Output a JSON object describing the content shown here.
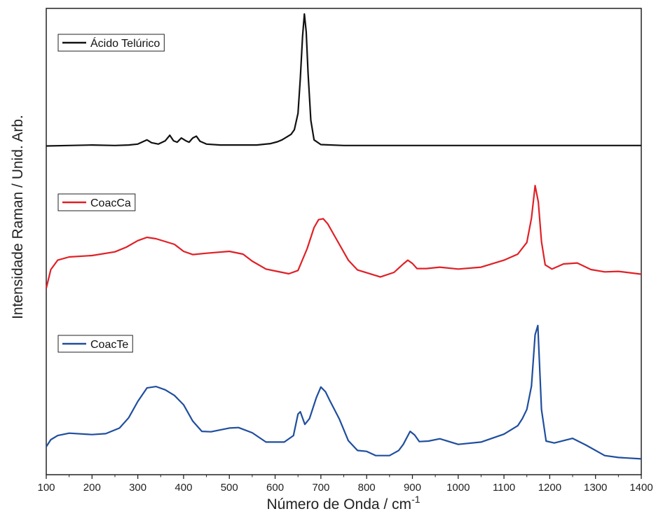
{
  "chart_data": {
    "type": "line",
    "xlabel": "Número de Onda / cm",
    "xlabel_sup": "-1",
    "ylabel": "Intensidade Raman / Unid. Arb.",
    "xlim": [
      100,
      1400
    ],
    "ylim": [
      0,
      100
    ],
    "grid": false,
    "legend_placement": "top-left of each stacked panel",
    "x_ticks": [
      "100",
      "200",
      "300",
      "400",
      "500",
      "600",
      "700",
      "800",
      "900",
      "1000",
      "1100",
      "1200",
      "1300",
      "1400"
    ],
    "y_ticks_shown": false,
    "series": [
      {
        "name": "Ácido Telúrico",
        "color": "#111111",
        "x": [
          100,
          150,
          200,
          250,
          280,
          300,
          320,
          330,
          345,
          360,
          370,
          378,
          386,
          395,
          405,
          412,
          420,
          428,
          436,
          450,
          480,
          520,
          560,
          590,
          605,
          615,
          625,
          635,
          642,
          650,
          655,
          660,
          664,
          668,
          672,
          678,
          685,
          700,
          750,
          800,
          900,
          1000,
          1100,
          1200,
          1300,
          1400
        ],
        "y": [
          70.5,
          70.6,
          70.7,
          70.6,
          70.7,
          70.9,
          71.8,
          71.2,
          70.9,
          71.6,
          72.8,
          71.6,
          71.3,
          72.2,
          71.6,
          71.3,
          72.2,
          72.6,
          71.5,
          70.9,
          70.7,
          70.7,
          70.7,
          71.0,
          71.4,
          71.8,
          72.4,
          73.0,
          74.0,
          77.5,
          85.0,
          94.0,
          98.8,
          95.0,
          86.0,
          76.0,
          71.8,
          70.8,
          70.6,
          70.6,
          70.6,
          70.6,
          70.6,
          70.6,
          70.6,
          70.6
        ]
      },
      {
        "name": "CoacCa",
        "color": "#e02026",
        "x": [
          100,
          110,
          125,
          150,
          200,
          250,
          275,
          300,
          320,
          340,
          360,
          380,
          400,
          420,
          450,
          500,
          530,
          550,
          580,
          600,
          630,
          650,
          670,
          685,
          695,
          705,
          715,
          730,
          760,
          780,
          800,
          830,
          860,
          880,
          890,
          900,
          910,
          930,
          960,
          1000,
          1050,
          1100,
          1130,
          1150,
          1160,
          1168,
          1175,
          1182,
          1190,
          1205,
          1230,
          1260,
          1290,
          1320,
          1350,
          1400
        ],
        "y": [
          40.0,
          44.0,
          46.0,
          46.7,
          47.0,
          47.8,
          48.8,
          50.2,
          50.9,
          50.6,
          50.0,
          49.4,
          47.9,
          47.2,
          47.5,
          47.9,
          47.3,
          45.8,
          44.1,
          43.7,
          43.1,
          43.8,
          48.5,
          53.0,
          54.7,
          54.9,
          53.8,
          51.2,
          46.0,
          43.9,
          43.3,
          42.4,
          43.4,
          45.2,
          46.0,
          45.3,
          44.2,
          44.2,
          44.5,
          44.1,
          44.5,
          46.0,
          47.3,
          49.8,
          55.0,
          62.0,
          58.5,
          50.0,
          45.0,
          44.1,
          45.2,
          45.4,
          44.0,
          43.5,
          43.6,
          43.0
        ]
      },
      {
        "name": "CoacTe",
        "color": "#1f4e9e",
        "x": [
          100,
          110,
          125,
          150,
          200,
          230,
          260,
          280,
          300,
          320,
          340,
          360,
          380,
          400,
          420,
          440,
          460,
          500,
          520,
          550,
          580,
          620,
          640,
          650,
          655,
          665,
          675,
          690,
          700,
          710,
          720,
          740,
          760,
          780,
          800,
          820,
          850,
          870,
          880,
          895,
          905,
          915,
          935,
          960,
          1000,
          1050,
          1100,
          1130,
          1140,
          1150,
          1160,
          1168,
          1174,
          1182,
          1192,
          1210,
          1250,
          1280,
          1320,
          1350,
          1400
        ],
        "y": [
          6.0,
          7.5,
          8.4,
          8.9,
          8.6,
          8.8,
          10.0,
          12.2,
          15.7,
          18.6,
          18.9,
          18.2,
          17.0,
          15.0,
          11.5,
          9.3,
          9.2,
          10.0,
          10.1,
          9.0,
          7.0,
          7.0,
          8.4,
          13.0,
          13.5,
          10.8,
          12.0,
          16.5,
          18.8,
          17.8,
          15.8,
          12.0,
          7.3,
          5.2,
          5.0,
          4.1,
          4.1,
          5.2,
          6.5,
          9.3,
          8.5,
          7.1,
          7.2,
          7.7,
          6.5,
          7.0,
          8.7,
          10.5,
          12.0,
          14.0,
          19.0,
          30.0,
          32.0,
          14.0,
          7.2,
          6.8,
          7.8,
          6.3,
          4.1,
          3.7,
          3.4
        ]
      }
    ]
  }
}
